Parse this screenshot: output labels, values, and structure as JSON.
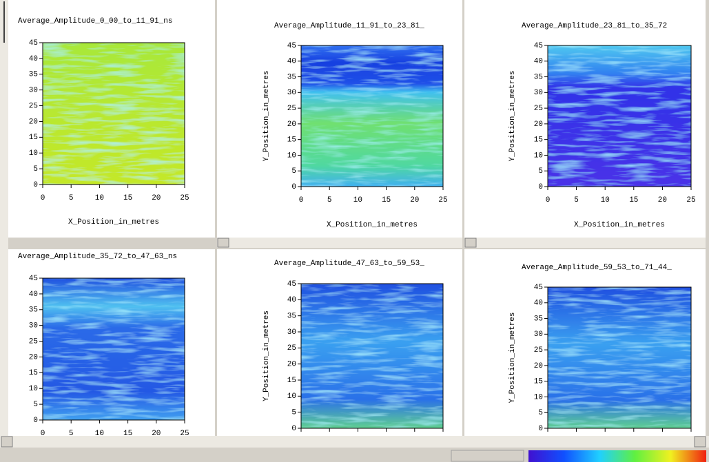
{
  "panels": [
    {
      "title": "Average_Amplitude_0_00_to_11_91_ns",
      "x_label": "X_Position_in_metres",
      "xticks": [
        0,
        5,
        10,
        15,
        20,
        25
      ],
      "yticks": [
        0,
        5,
        10,
        15,
        20,
        25,
        30,
        35,
        40,
        45
      ]
    },
    {
      "title": "Average_Amplitude_11_91_to_23_81_",
      "y_label": "Y_Position_in_metres",
      "x_label": "X_Position_in_metres",
      "xticks": [
        0,
        5,
        10,
        15,
        20,
        25
      ],
      "yticks": [
        0,
        5,
        10,
        15,
        20,
        25,
        30,
        35,
        40,
        45
      ]
    },
    {
      "title": "Average_Amplitude_23_81_to_35_72",
      "y_label": "Y_Position_in_metres",
      "x_label": "X_Position_in_metres",
      "xticks": [
        0,
        5,
        10,
        15,
        20,
        25
      ],
      "yticks": [
        0,
        5,
        10,
        15,
        20,
        25,
        30,
        35,
        40,
        45
      ]
    },
    {
      "title": "Average_Amplitude_35_72_to_47_63_ns",
      "xticks": [
        0,
        5,
        10,
        15,
        20,
        25
      ],
      "yticks": [
        0,
        5,
        10,
        15,
        20,
        25,
        30,
        35,
        40,
        45
      ]
    },
    {
      "title": "Average_Amplitude_47_63_to_59_53_",
      "y_label": "Y_Position_in_metres",
      "yticks": [
        0,
        5,
        10,
        15,
        20,
        25,
        30,
        35,
        40,
        45
      ]
    },
    {
      "title": "Average_Amplitude_59_53_to_71_44_",
      "y_label": "Y_Position_in_metres",
      "yticks": [
        0,
        5,
        10,
        15,
        20,
        25,
        30,
        35,
        40,
        45
      ]
    }
  ]
}
